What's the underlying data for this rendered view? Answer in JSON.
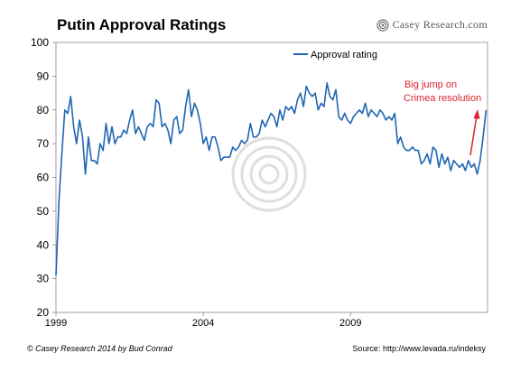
{
  "header": {
    "title": "Putin Approval Ratings",
    "brand": "Casey Research.com"
  },
  "footer": {
    "credit": "© Casey Research 2014 by Bud Conrad",
    "source": "Source: http://www.levada.ru/indeksy"
  },
  "colors": {
    "series": "#1f66b3",
    "annotation": "#d9242b",
    "axis": "#888888"
  },
  "chart_data": {
    "type": "line",
    "title": "Putin Approval Ratings",
    "xlabel": "",
    "ylabel": "",
    "xlim": [
      1999.6,
      2014.25
    ],
    "ylim": [
      20,
      100
    ],
    "x_ticks": [
      "1999",
      "2004",
      "2009"
    ],
    "x_tick_values": [
      1999.6,
      2004.6,
      2009.6
    ],
    "y_ticks": [
      20,
      30,
      40,
      50,
      60,
      70,
      80,
      90,
      100
    ],
    "grid": false,
    "legend_position": "top-right",
    "series": [
      {
        "name": "Approval rating",
        "x": [
          1999.6,
          1999.7,
          1999.8,
          1999.9,
          2000.0,
          2000.1,
          2000.2,
          2000.3,
          2000.4,
          2000.5,
          2000.6,
          2000.7,
          2000.8,
          2000.9,
          2001.0,
          2001.1,
          2001.2,
          2001.3,
          2001.4,
          2001.5,
          2001.6,
          2001.7,
          2001.8,
          2001.9,
          2002.0,
          2002.1,
          2002.2,
          2002.3,
          2002.4,
          2002.5,
          2002.6,
          2002.7,
          2002.8,
          2002.9,
          2003.0,
          2003.1,
          2003.2,
          2003.3,
          2003.4,
          2003.5,
          2003.6,
          2003.7,
          2003.8,
          2003.9,
          2004.0,
          2004.1,
          2004.2,
          2004.3,
          2004.4,
          2004.5,
          2004.6,
          2004.7,
          2004.8,
          2004.9,
          2005.0,
          2005.1,
          2005.2,
          2005.3,
          2005.4,
          2005.5,
          2005.6,
          2005.7,
          2005.8,
          2005.9,
          2006.0,
          2006.1,
          2006.2,
          2006.3,
          2006.4,
          2006.5,
          2006.6,
          2006.7,
          2006.8,
          2006.9,
          2007.0,
          2007.1,
          2007.2,
          2007.3,
          2007.4,
          2007.5,
          2007.6,
          2007.7,
          2007.8,
          2007.9,
          2008.0,
          2008.1,
          2008.2,
          2008.3,
          2008.4,
          2008.5,
          2008.6,
          2008.7,
          2008.8,
          2008.9,
          2009.0,
          2009.1,
          2009.2,
          2009.3,
          2009.4,
          2009.5,
          2009.6,
          2009.7,
          2009.8,
          2009.9,
          2010.0,
          2010.1,
          2010.2,
          2010.3,
          2010.4,
          2010.5,
          2010.6,
          2010.7,
          2010.8,
          2010.9,
          2011.0,
          2011.1,
          2011.2,
          2011.3,
          2011.4,
          2011.5,
          2011.6,
          2011.7,
          2011.8,
          2011.9,
          2012.0,
          2012.1,
          2012.2,
          2012.3,
          2012.4,
          2012.5,
          2012.6,
          2012.7,
          2012.8,
          2012.9,
          2013.0,
          2013.1,
          2013.2,
          2013.3,
          2013.4,
          2013.5,
          2013.6,
          2013.7,
          2013.8,
          2013.9,
          2014.0,
          2014.1,
          2014.2
        ],
        "values": [
          31,
          53,
          67,
          80,
          79,
          84,
          75,
          70,
          77,
          72,
          61,
          72,
          65,
          65,
          64,
          70,
          68,
          76,
          70,
          75,
          70,
          72,
          72,
          74,
          73,
          77,
          80,
          73,
          75,
          73,
          71,
          75,
          76,
          75,
          83,
          82,
          75,
          76,
          74,
          70,
          77,
          78,
          73,
          74,
          81,
          86,
          78,
          82,
          80,
          76,
          70,
          72,
          68,
          72,
          72,
          69,
          65,
          66,
          66,
          66,
          69,
          68,
          69,
          71,
          70,
          71,
          76,
          72,
          72,
          73,
          77,
          75,
          77,
          79,
          78,
          75,
          80,
          77,
          81,
          80,
          81,
          79,
          83,
          85,
          81,
          87,
          85,
          84,
          85,
          80,
          82,
          81,
          88,
          84,
          83,
          86,
          78,
          77,
          79,
          77,
          76,
          78,
          79,
          80,
          79,
          82,
          78,
          80,
          79,
          78,
          80,
          79,
          77,
          78,
          77,
          79,
          70,
          72,
          69,
          68,
          68,
          69,
          68,
          68,
          64,
          65,
          67,
          64,
          69,
          68,
          63,
          67,
          64,
          66,
          62,
          65,
          64,
          63,
          64,
          62,
          65,
          63,
          64,
          61,
          65,
          72,
          80
        ]
      }
    ],
    "annotations": [
      {
        "text_line1": "Big jump on",
        "text_line2": "Crimea resolution"
      }
    ]
  }
}
